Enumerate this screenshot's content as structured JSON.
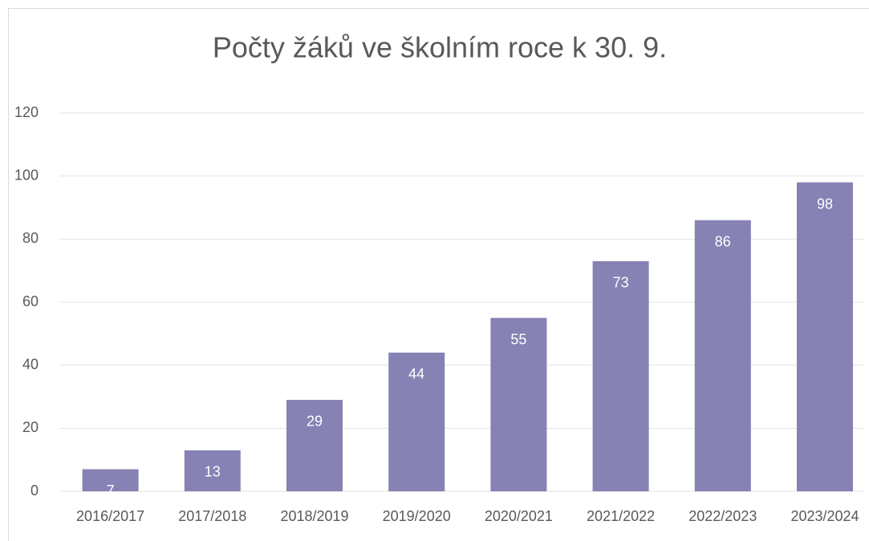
{
  "chart_data": {
    "type": "bar",
    "title": "Počty žáků ve školním roce k 30. 9.",
    "categories": [
      "2016/2017",
      "2017/2018",
      "2018/2019",
      "2019/2020",
      "2020/2021",
      "2021/2022",
      "2022/2023",
      "2023/2024"
    ],
    "values": [
      7,
      13,
      29,
      44,
      55,
      73,
      86,
      98
    ],
    "color": "#8682b4",
    "ylim": [
      0,
      120
    ],
    "yticks": [
      0,
      20,
      40,
      60,
      80,
      100,
      120
    ],
    "grid": true
  }
}
